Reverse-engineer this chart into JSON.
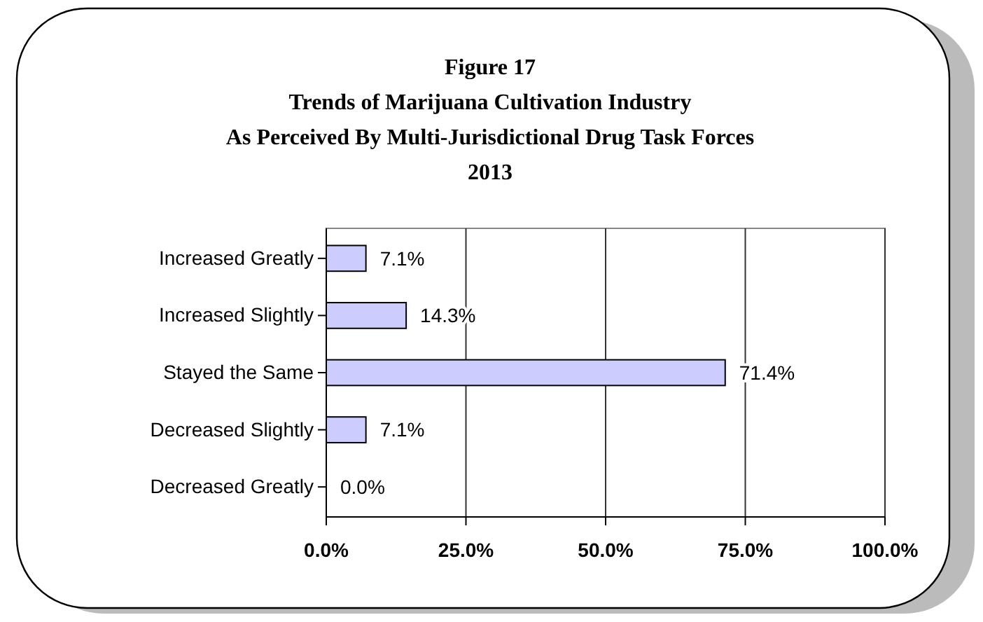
{
  "chart_data": {
    "type": "bar",
    "orientation": "horizontal",
    "title": "Figure 17\nTrends of Marijuana Cultivation Industry\nAs Perceived By Multi-Jurisdictional Drug Task Forces\n2013",
    "categories": [
      "Increased Greatly",
      "Increased Slightly",
      "Stayed the Same",
      "Decreased Slightly",
      "Decreased Greatly"
    ],
    "values": [
      7.1,
      14.3,
      71.4,
      7.1,
      0.0
    ],
    "value_labels": [
      "7.1%",
      "14.3%",
      "71.4%",
      "7.1%",
      "0.0%"
    ],
    "color": "#ccccff",
    "xlim": [
      0,
      100
    ],
    "xticks": [
      {
        "value": 0,
        "label": "0.0%"
      },
      {
        "value": 25,
        "label": "25.0%"
      },
      {
        "value": 50,
        "label": "50.0%"
      },
      {
        "value": 75,
        "label": "75.0%"
      },
      {
        "value": 100,
        "label": "100.0%"
      }
    ],
    "grid": "x"
  }
}
